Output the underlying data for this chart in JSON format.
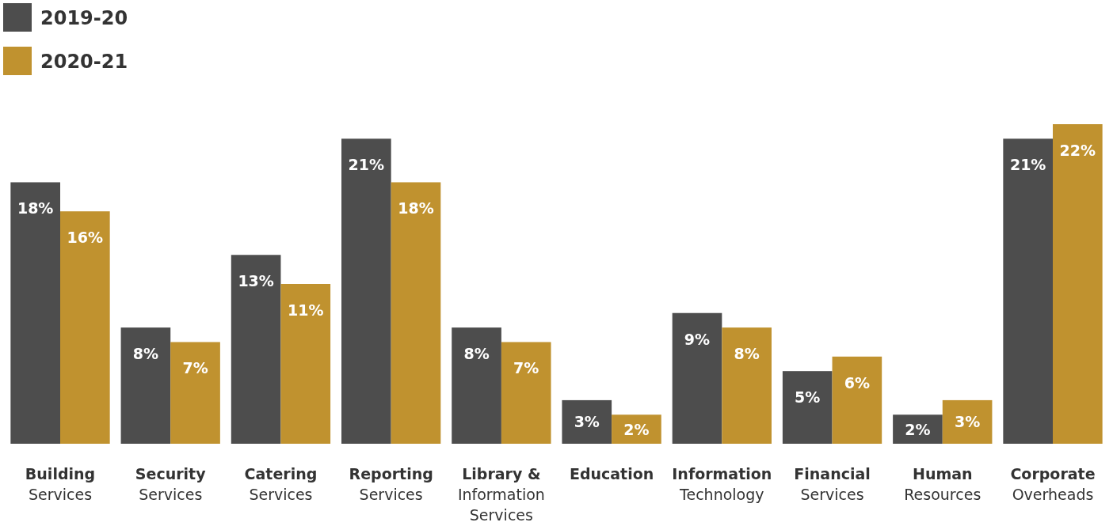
{
  "chart_data": {
    "type": "bar",
    "categories": [
      "Building\nServices",
      "Security\nServices",
      "Catering\nServices",
      "Reporting\nServices",
      "Library &\nInformation\nServices",
      "Education",
      "Information\nTechnology",
      "Financial\nServices",
      "Human\nResources",
      "Corporate\nOverheads"
    ],
    "series": [
      {
        "name": "2019-20",
        "color": "#4d4d4d",
        "values": [
          18,
          8,
          13,
          21,
          8,
          3,
          9,
          5,
          2,
          21
        ],
        "value_labels": [
          "18%",
          "8%",
          "13%",
          "21%",
          "8%",
          "3%",
          "9%",
          "5%",
          "2%",
          "21%"
        ]
      },
      {
        "name": "2020-21",
        "color": "#c0922f",
        "values": [
          16,
          7,
          11,
          18,
          7,
          2,
          8,
          6,
          3,
          22
        ],
        "value_labels": [
          "16%",
          "7%",
          "11%",
          "18%",
          "7%",
          "2%",
          "8%",
          "6%",
          "3%",
          "22%"
        ]
      }
    ],
    "legend": "top left"
  }
}
